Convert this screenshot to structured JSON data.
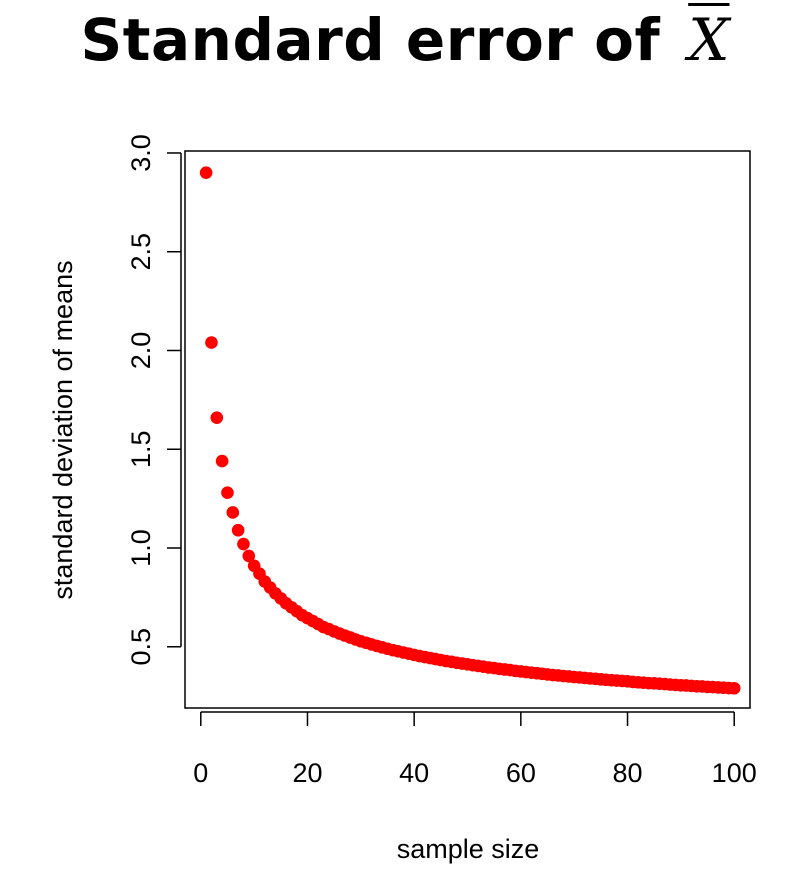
{
  "title": {
    "text": "Standard error of",
    "symbol": "X"
  },
  "chart_data": {
    "type": "scatter",
    "title": "Standard error of X̄",
    "xlabel": "sample size",
    "ylabel": "standard deviation of means",
    "xlim": [
      -2.96,
      102.96
    ],
    "ylim": [
      0.19,
      3.01
    ],
    "x_ticks": [
      0,
      20,
      40,
      60,
      80,
      100
    ],
    "x_tick_labels": [
      "0",
      "20",
      "40",
      "60",
      "80",
      "100"
    ],
    "y_ticks": [
      0.5,
      1.0,
      1.5,
      2.0,
      2.5,
      3.0
    ],
    "y_tick_labels": [
      "0.5",
      "1.0",
      "1.5",
      "2.0",
      "2.5",
      "3.0"
    ],
    "grid": false,
    "legend": "none",
    "point_color": "#ff0000",
    "series": [
      {
        "x": [
          1,
          2,
          3,
          4,
          5,
          6,
          7,
          8,
          9,
          10,
          11,
          12,
          13,
          14,
          15,
          16,
          17,
          18,
          19,
          20,
          21,
          22,
          23,
          24,
          25,
          26,
          27,
          28,
          29,
          30,
          31,
          32,
          33,
          34,
          35,
          36,
          37,
          38,
          39,
          40,
          41,
          42,
          43,
          44,
          45,
          46,
          47,
          48,
          49,
          50,
          51,
          52,
          53,
          54,
          55,
          56,
          57,
          58,
          59,
          60,
          61,
          62,
          63,
          64,
          65,
          66,
          67,
          68,
          69,
          70,
          71,
          72,
          73,
          74,
          75,
          76,
          77,
          78,
          79,
          80,
          81,
          82,
          83,
          84,
          85,
          86,
          87,
          88,
          89,
          90,
          91,
          92,
          93,
          94,
          95,
          96,
          97,
          98,
          99,
          100
        ],
        "y": [
          2.9,
          2.04,
          1.66,
          1.44,
          1.28,
          1.18,
          1.09,
          1.02,
          0.96,
          0.91,
          0.87,
          0.83,
          0.8,
          0.77,
          0.745,
          0.72,
          0.7,
          0.68,
          0.66,
          0.645,
          0.63,
          0.615,
          0.6,
          0.59,
          0.578,
          0.567,
          0.557,
          0.547,
          0.537,
          0.528,
          0.52,
          0.512,
          0.504,
          0.497,
          0.49,
          0.483,
          0.477,
          0.471,
          0.465,
          0.459,
          0.453,
          0.448,
          0.443,
          0.438,
          0.433,
          0.428,
          0.424,
          0.419,
          0.415,
          0.411,
          0.407,
          0.403,
          0.399,
          0.395,
          0.392,
          0.388,
          0.385,
          0.382,
          0.378,
          0.375,
          0.372,
          0.369,
          0.366,
          0.363,
          0.36,
          0.357,
          0.355,
          0.352,
          0.35,
          0.347,
          0.345,
          0.342,
          0.34,
          0.338,
          0.335,
          0.333,
          0.331,
          0.329,
          0.327,
          0.325,
          0.322,
          0.32,
          0.318,
          0.316,
          0.315,
          0.313,
          0.311,
          0.309,
          0.307,
          0.305,
          0.304,
          0.302,
          0.3,
          0.299,
          0.297,
          0.296,
          0.294,
          0.293,
          0.291,
          0.29
        ]
      }
    ]
  }
}
